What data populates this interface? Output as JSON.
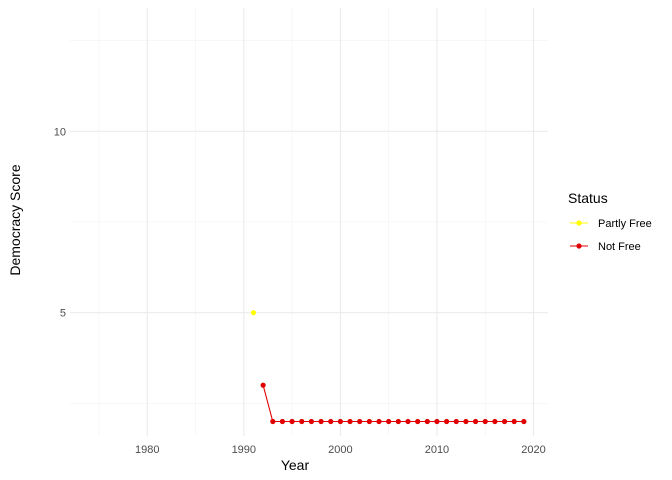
{
  "chart_data": {
    "type": "line",
    "title": "",
    "xlabel": "Year",
    "ylabel": "Democracy Score",
    "xlim": [
      1972,
      2021.5
    ],
    "ylim": [
      1.6,
      13.4
    ],
    "x_ticks": [
      1980,
      1990,
      2000,
      2010,
      2020
    ],
    "y_ticks": [
      5,
      10
    ],
    "grid": true,
    "legend": {
      "title": "Status",
      "position": "right",
      "entries": [
        {
          "label": "Partly Free",
          "color": "#FFFF00"
        },
        {
          "label": "Not Free",
          "color": "#E00000"
        }
      ]
    },
    "series": [
      {
        "name": "Partly Free",
        "color": "#FFFF00",
        "x": [
          1991
        ],
        "y": [
          5
        ]
      },
      {
        "name": "Not Free",
        "color": "#E00000",
        "x": [
          1992,
          1993,
          1994,
          1995,
          1996,
          1997,
          1998,
          1999,
          2000,
          2001,
          2002,
          2003,
          2004,
          2005,
          2006,
          2007,
          2008,
          2009,
          2010,
          2011,
          2012,
          2013,
          2014,
          2015,
          2016,
          2017,
          2018,
          2019
        ],
        "y": [
          3,
          2,
          2,
          2,
          2,
          2,
          2,
          2,
          2,
          2,
          2,
          2,
          2,
          2,
          2,
          2,
          2,
          2,
          2,
          2,
          2,
          2,
          2,
          2,
          2,
          2,
          2,
          2
        ]
      }
    ]
  }
}
